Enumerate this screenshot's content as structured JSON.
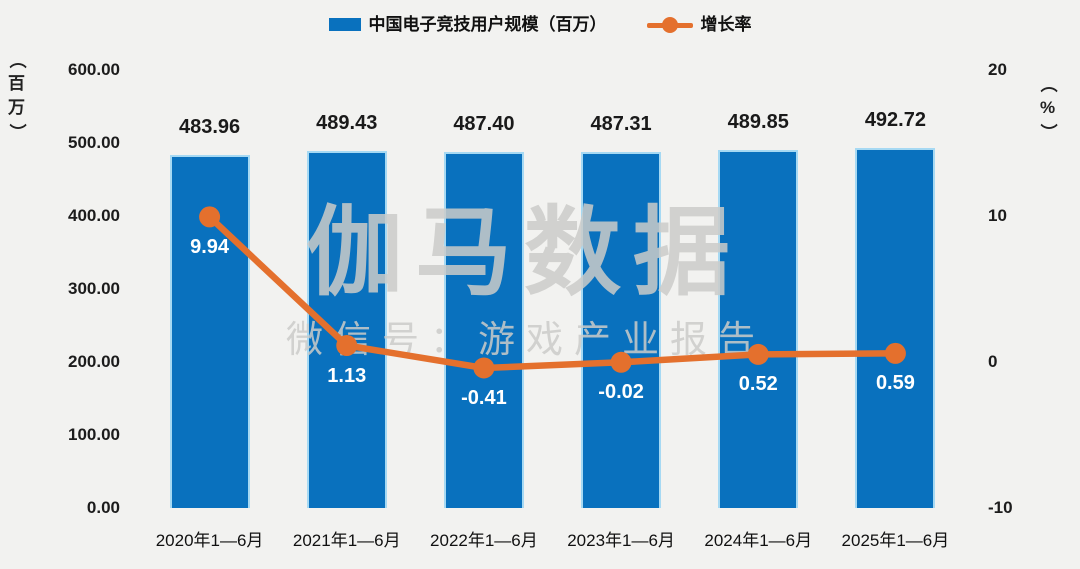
{
  "legend": {
    "bar_label": "中国电子竞技用户规模（百万）",
    "line_label": "增长率"
  },
  "watermark": {
    "title": "伽马数据",
    "subtitle": "微信号：游戏产业报告"
  },
  "colors": {
    "background": "#f2f2f0",
    "bar_fill": "#0971be",
    "bar_border": "#a6d9f3",
    "line": "#e4702d",
    "axis_text": "#1c1c1c",
    "bar_value_label": "#1a1a1a",
    "line_value_label": "#ffffff",
    "watermark": "rgba(203,203,201,0.85)"
  },
  "chart_data": {
    "type": "combo",
    "categories": [
      "2020年1—6月",
      "2021年1—6月",
      "2022年1—6月",
      "2023年1—6月",
      "2024年1—6月",
      "2025年1—6月"
    ],
    "series": [
      {
        "name": "中国电子竞技用户规模（百万）",
        "type": "bar",
        "axis": "left",
        "values": [
          483.96,
          489.43,
          487.4,
          487.31,
          489.85,
          492.72
        ],
        "labels": [
          "483.96",
          "489.43",
          "487.40",
          "487.31",
          "489.85",
          "492.72"
        ]
      },
      {
        "name": "增长率",
        "type": "line",
        "axis": "right",
        "values": [
          9.94,
          1.13,
          -0.41,
          -0.02,
          0.52,
          0.59
        ],
        "labels": [
          "9.94",
          "1.13",
          "-0.41",
          "-0.02",
          "0.52",
          "0.59"
        ]
      }
    ],
    "left_axis": {
      "unit": "（百万）",
      "range": [
        0,
        600
      ],
      "ticks": [
        "600.00",
        "500.00",
        "400.00",
        "300.00",
        "200.00",
        "100.00",
        "0.00"
      ]
    },
    "right_axis": {
      "unit": "（%）",
      "range": [
        -10,
        20
      ],
      "ticks": [
        "20",
        "10",
        "0",
        "-10"
      ]
    },
    "grid": false,
    "legend_position": "top"
  }
}
